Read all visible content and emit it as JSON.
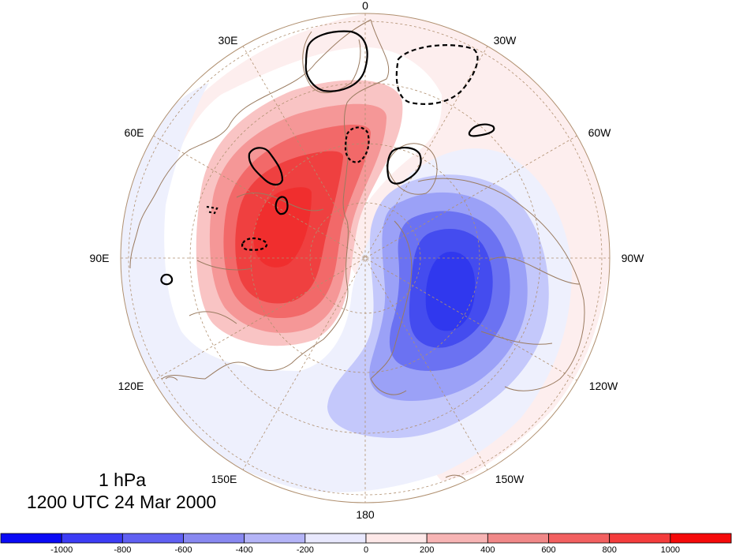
{
  "map": {
    "projection": "north-polar-stereographic",
    "longitude_labels": [
      {
        "text": "0",
        "lon": 0
      },
      {
        "text": "30W",
        "lon": -30
      },
      {
        "text": "60W",
        "lon": -60
      },
      {
        "text": "90W",
        "lon": -90
      },
      {
        "text": "120W",
        "lon": -120
      },
      {
        "text": "150W",
        "lon": -150
      },
      {
        "text": "180",
        "lon": 180
      },
      {
        "text": "150E",
        "lon": 150
      },
      {
        "text": "120E",
        "lon": 120
      },
      {
        "text": "90E",
        "lon": 90
      },
      {
        "text": "60E",
        "lon": 60
      },
      {
        "text": "30E",
        "lon": 30
      }
    ],
    "fill_colors": {
      "pos_0_200": "#fdeeee",
      "pos_200_400": "#f9c4c4",
      "pos_400_600": "#f59797",
      "pos_600_800": "#f26969",
      "pos_800_1000": "#ef4040",
      "neg_0_200": "#eef0fd",
      "neg_200_400": "#c4c8fb",
      "neg_400_600": "#9ba1f7",
      "neg_600_800": "#6b72f2",
      "neg_800_1000": "#444cef",
      "coastline": "#9a7b60",
      "graticule": "#b09070"
    }
  },
  "caption": {
    "level": "1 hPa",
    "time": "1200 UTC 24 Mar 2000"
  },
  "colorbar": {
    "tick_labels": [
      "-1000",
      "-800",
      "-600",
      "-400",
      "-200",
      "0",
      "200",
      "400",
      "600",
      "800",
      "1000"
    ],
    "colors": [
      "#0a0af5",
      "#3c3cf5",
      "#6060f2",
      "#8888f0",
      "#b4b4f7",
      "#e8e8fd",
      "#fde8e8",
      "#f7b4b4",
      "#f08888",
      "#f26060",
      "#f43c3c",
      "#f50a0a"
    ]
  }
}
